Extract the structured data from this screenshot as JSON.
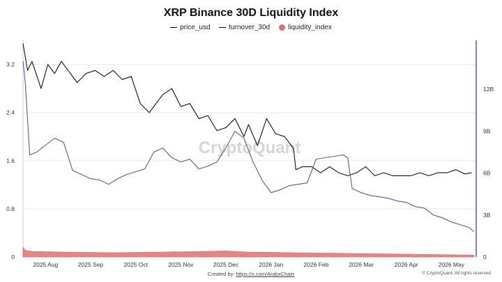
{
  "chart_data": {
    "type": "line",
    "title": "XRP Binance 30D Liquidity Index",
    "watermark": "CryptoQuant",
    "legend": [
      {
        "name": "price_usd",
        "color": "#000000",
        "kind": "line"
      },
      {
        "name": "turnover_30d",
        "color": "#000000",
        "kind": "line"
      },
      {
        "name": "liquidity_index",
        "color": "#e07070",
        "kind": "dot"
      }
    ],
    "x_ticks": [
      "2025 Aug",
      "2025 Sep",
      "2025 Oct",
      "2025 Nov",
      "2025 Dec",
      "2026 Jan",
      "2026 Feb",
      "2026 Mar",
      "2026 Apr",
      "2026 May"
    ],
    "x_start": 0,
    "x_end": 10.05,
    "y_left": {
      "min": 0,
      "max": 3.6,
      "ticks": [
        0,
        0.8,
        1.6,
        2.4,
        3.2
      ]
    },
    "y_right": {
      "min": 0,
      "max": 15.5,
      "ticks": [
        0,
        3,
        6,
        9,
        12
      ],
      "tick_labels": [
        "0",
        "3B",
        "6B",
        "9B",
        "12B"
      ]
    },
    "series": [
      {
        "name": "price_usd",
        "axis": "left",
        "color": "#111111",
        "x": [
          0,
          0.1,
          0.2,
          0.4,
          0.55,
          0.7,
          0.85,
          1.0,
          1.2,
          1.4,
          1.6,
          1.8,
          2.0,
          2.2,
          2.4,
          2.6,
          2.8,
          2.9,
          3.1,
          3.3,
          3.5,
          3.7,
          3.9,
          4.1,
          4.3,
          4.5,
          4.7,
          4.9,
          5.0,
          5.2,
          5.4,
          5.6,
          5.8,
          6.0,
          6.05,
          6.2,
          6.4,
          6.6,
          6.8,
          7.0,
          7.2,
          7.4,
          7.6,
          7.8,
          8.0,
          8.2,
          8.4,
          8.6,
          8.8,
          9.0,
          9.2,
          9.4,
          9.6,
          9.8,
          9.95
        ],
        "y": [
          3.55,
          3.1,
          3.25,
          2.8,
          3.2,
          3.05,
          3.25,
          3.1,
          2.9,
          3.05,
          3.1,
          3.0,
          3.1,
          2.95,
          3.0,
          2.55,
          2.4,
          2.5,
          2.7,
          2.8,
          2.5,
          2.55,
          2.3,
          2.35,
          2.1,
          2.15,
          2.3,
          2.0,
          2.2,
          1.85,
          2.3,
          2.05,
          2.0,
          1.8,
          1.45,
          1.5,
          1.5,
          1.4,
          1.5,
          1.4,
          1.35,
          1.4,
          1.5,
          1.35,
          1.4,
          1.35,
          1.35,
          1.35,
          1.4,
          1.35,
          1.4,
          1.4,
          1.45,
          1.38,
          1.4
        ]
      },
      {
        "name": "turnover_30d",
        "axis": "right",
        "color": "#5a55a8",
        "x": [
          0,
          0.05,
          0.15,
          0.3,
          0.5,
          0.7,
          0.9,
          1.1,
          1.3,
          1.5,
          1.7,
          1.9,
          2.1,
          2.3,
          2.5,
          2.7,
          2.9,
          3.1,
          3.3,
          3.5,
          3.7,
          3.9,
          4.1,
          4.3,
          4.5,
          4.7,
          4.9,
          5.1,
          5.3,
          5.5,
          5.7,
          5.9,
          6.1,
          6.3,
          6.5,
          6.7,
          6.9,
          7.1,
          7.2,
          7.3,
          7.5,
          7.7,
          7.9,
          8.1,
          8.3,
          8.5,
          8.7,
          8.9,
          9.1,
          9.3,
          9.5,
          9.7,
          9.9,
          10.0
        ],
        "y": [
          14,
          12.5,
          7.3,
          7.5,
          8.0,
          8.5,
          8.2,
          6.2,
          5.9,
          5.6,
          5.5,
          5.2,
          5.6,
          5.9,
          6.1,
          6.3,
          7.5,
          7.8,
          7.1,
          6.8,
          7.0,
          6.3,
          6.5,
          6.8,
          7.8,
          9.0,
          8.5,
          6.8,
          5.5,
          4.6,
          4.8,
          5.1,
          5.2,
          5.3,
          7.0,
          7.1,
          7.2,
          7.3,
          7.1,
          4.9,
          4.6,
          4.4,
          4.3,
          4.2,
          4.0,
          3.9,
          3.6,
          3.5,
          3.0,
          2.8,
          2.5,
          2.3,
          2.1,
          1.8
        ]
      },
      {
        "name": "liquidity_index",
        "axis": "left",
        "color": "#e07070",
        "kind": "area",
        "x": [
          0,
          0.05,
          0.2,
          1.0,
          2.0,
          3.0,
          4.0,
          4.5,
          5.0,
          6.0,
          7.0,
          8.0,
          9.0,
          10.0
        ],
        "y": [
          0.16,
          0.11,
          0.09,
          0.08,
          0.07,
          0.08,
          0.09,
          0.1,
          0.08,
          0.07,
          0.06,
          0.05,
          0.04,
          0.03
        ]
      }
    ]
  },
  "footer": {
    "credit_prefix": "Created by: ",
    "credit_link": "https://x.com/ArabxChain",
    "copyright": "© CryptoQuant. All rights reserved"
  }
}
